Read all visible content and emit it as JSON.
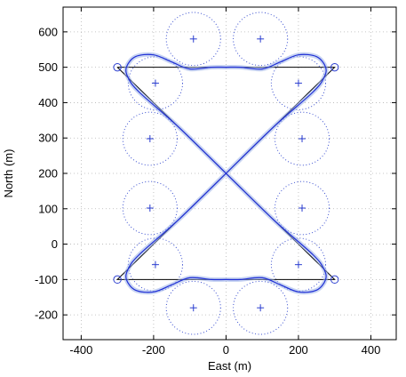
{
  "chart_data": {
    "type": "line",
    "xlabel": "East (m)",
    "ylabel": "North (m)",
    "xlim": [
      -450,
      470
    ],
    "ylim": [
      -270,
      670
    ],
    "xticks": [
      -400,
      -200,
      0,
      200,
      400
    ],
    "yticks": [
      -200,
      -100,
      0,
      100,
      200,
      300,
      400,
      500,
      600
    ],
    "grid": true,
    "colors": {
      "reference": "#000000",
      "trajectory": "#1f2fd6",
      "trajectory_spread": "#9bb0e8",
      "circles": "#3a4fd0",
      "markers": "#2a3dd0"
    },
    "reference_path": {
      "name": "",
      "x": [
        -300,
        300,
        -300,
        300,
        -300
      ],
      "y": [
        500,
        500,
        -100,
        -100,
        500
      ]
    },
    "waypoints": {
      "x": [
        -300,
        300,
        -300,
        300
      ],
      "y": [
        500,
        500,
        -100,
        -100
      ]
    },
    "loiter_circles": {
      "radius": 75,
      "centers": [
        {
          "x": -90,
          "y": 580
        },
        {
          "x": 95,
          "y": 580
        },
        {
          "x": -195,
          "y": 455
        },
        {
          "x": 200,
          "y": 455
        },
        {
          "x": -210,
          "y": 298
        },
        {
          "x": 210,
          "y": 298
        },
        {
          "x": -210,
          "y": 102
        },
        {
          "x": 210,
          "y": 102
        },
        {
          "x": -195,
          "y": -58
        },
        {
          "x": 200,
          "y": -58
        },
        {
          "x": -90,
          "y": -180
        },
        {
          "x": 95,
          "y": -180
        }
      ]
    },
    "trajectory": {
      "name": "",
      "x": [
        0,
        130,
        240,
        270,
        275,
        250,
        200,
        150,
        100,
        40,
        0,
        -40,
        -100,
        -150,
        -200,
        -250,
        -275,
        -270,
        -240,
        -130,
        0,
        130,
        240,
        270,
        275,
        250,
        200,
        150,
        100,
        40,
        0,
        -40,
        -100,
        -150,
        -200,
        -250,
        -275,
        -270,
        -240,
        -130,
        0
      ],
      "y": [
        200,
        330,
        430,
        470,
        500,
        530,
        535,
        515,
        495,
        500,
        500,
        500,
        495,
        515,
        535,
        530,
        500,
        470,
        430,
        330,
        200,
        70,
        -30,
        -70,
        -100,
        -130,
        -135,
        -115,
        -95,
        -100,
        -100,
        -100,
        -95,
        -115,
        -135,
        -130,
        -100,
        -70,
        -30,
        70,
        200
      ]
    }
  }
}
